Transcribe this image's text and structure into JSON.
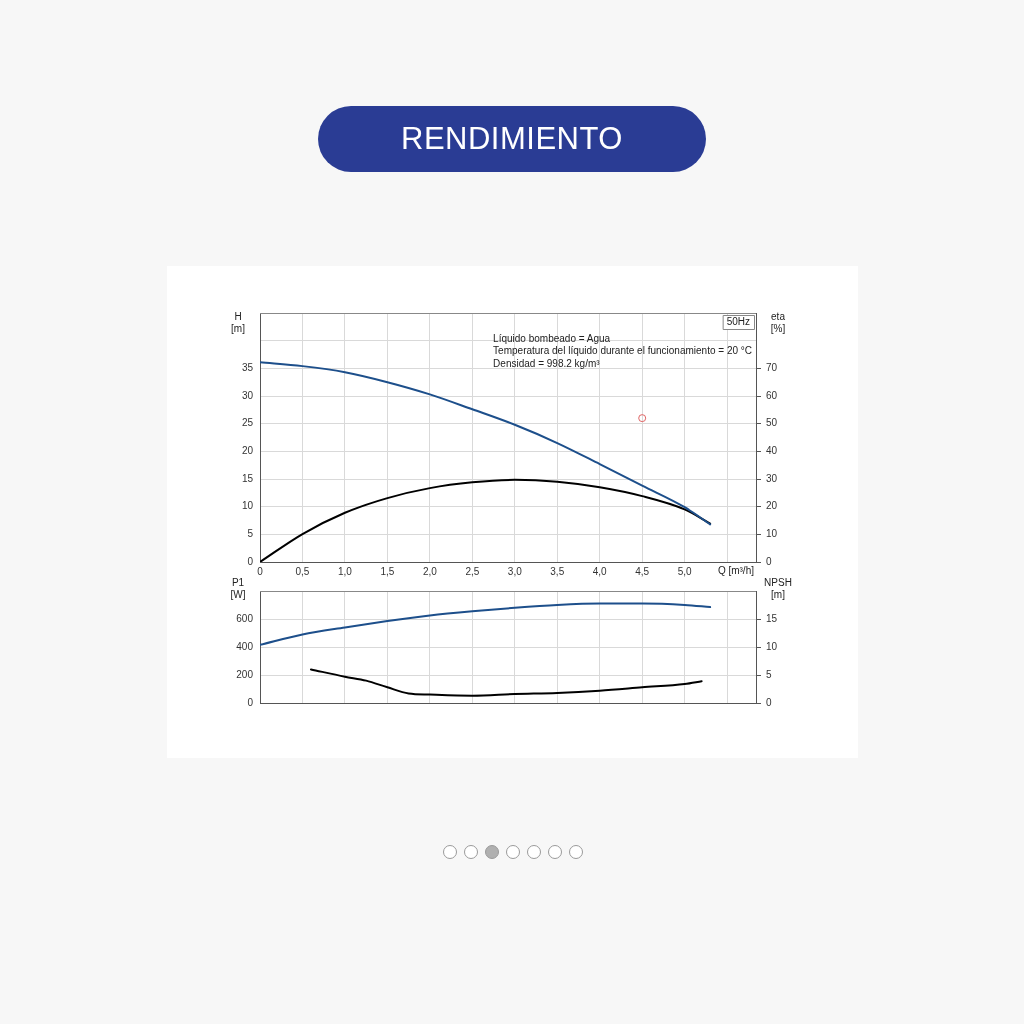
{
  "chart_data": [
    {
      "type": "line",
      "title": "RENDIMIENTO",
      "xlabel": "Q [m³/h]",
      "ylabel": "H [m]",
      "y2label": "eta [%]",
      "annotations": [
        "50Hz",
        "Líquido bombeado = Agua",
        "Temperatura del líquido durante el funcionamiento = 20 °C",
        "Densidad = 998.2 kg/m³"
      ],
      "xlim": [
        0,
        5.84
      ],
      "xticks": [
        0,
        {
          "value": 0.5,
          "label": "0,5"
        },
        {
          "value": 1,
          "label": "1,0"
        },
        {
          "value": 1.5,
          "label": "1,5"
        },
        {
          "value": 2,
          "label": "2,0"
        },
        {
          "value": 2.5,
          "label": "2,5"
        },
        {
          "value": 3,
          "label": "3,0"
        },
        {
          "value": 3.5,
          "label": "3,5"
        },
        {
          "value": 4,
          "label": "4,0"
        },
        {
          "value": 4.5,
          "label": "4,5"
        },
        {
          "value": 5,
          "label": "5,0"
        },
        {
          "value": 5.5,
          "label": null
        }
      ],
      "ylim": [
        0,
        45
      ],
      "yticks": [
        0,
        5,
        10,
        15,
        20,
        25,
        30,
        35,
        {
          "value": 40,
          "label": null
        }
      ],
      "y2lim": [
        0,
        90
      ],
      "y2ticks": [
        0,
        10,
        20,
        30,
        40,
        50,
        60,
        70
      ],
      "grid": true,
      "series": [
        {
          "type": "line",
          "color": "#1d4f8b",
          "x": [
            0,
            0.5,
            1,
            1.5,
            2,
            2.5,
            3,
            3.5,
            4,
            4.5,
            5,
            5.3
          ],
          "values": [
            36.1,
            35.4,
            34.3,
            32.5,
            30.3,
            27.6,
            24.8,
            21.5,
            17.7,
            13.8,
            9.9,
            6.8
          ]
        },
        {
          "type": "line",
          "color": "#000000",
          "axis": "y2",
          "x": [
            0,
            0.5,
            1,
            1.5,
            2,
            2.5,
            3,
            3.5,
            4,
            4.5,
            5,
            5.3
          ],
          "values": [
            0,
            10.1,
            17.8,
            23.1,
            26.7,
            28.8,
            29.7,
            29.0,
            27.0,
            23.8,
            19.0,
            13.9
          ]
        },
        {
          "type": "scatter",
          "color": "#e06666",
          "marker": "circle",
          "x": [
            4.5
          ],
          "values": [
            26
          ]
        }
      ]
    },
    {
      "type": "line",
      "ylabel": "P1 [W]",
      "y2label": "NPSH [m]",
      "xlim": [
        0,
        5.84
      ],
      "xticks": [
        0,
        0.5,
        1,
        1.5,
        2,
        2.5,
        3,
        3.5,
        4,
        4.5,
        5,
        5.5
      ],
      "ylim": [
        0,
        800
      ],
      "yticks": [
        0,
        200,
        400,
        600
      ],
      "y2lim": [
        0,
        20
      ],
      "y2ticks": [
        0,
        5,
        10,
        15
      ],
      "tick_labels": "y",
      "grid": true,
      "series": [
        {
          "type": "line",
          "color": "#1d4f8b",
          "x": [
            0,
            0.5,
            1,
            1.5,
            2,
            2.5,
            3,
            3.5,
            4,
            4.5,
            5,
            5.3
          ],
          "values": [
            415,
            490,
            540,
            585,
            625,
            655,
            680,
            700,
            710,
            710,
            700,
            685
          ]
        },
        {
          "type": "line",
          "color": "#000000",
          "axis": "y2",
          "x": [
            0.6,
            1,
            1.25,
            1.5,
            1.75,
            2,
            2.5,
            3,
            3.5,
            4,
            4.5,
            5,
            5.2
          ],
          "values": [
            6.0,
            4.7,
            4.0,
            2.8,
            1.7,
            1.5,
            1.3,
            1.6,
            1.8,
            2.2,
            2.8,
            3.4,
            3.9
          ]
        }
      ]
    }
  ]
}
